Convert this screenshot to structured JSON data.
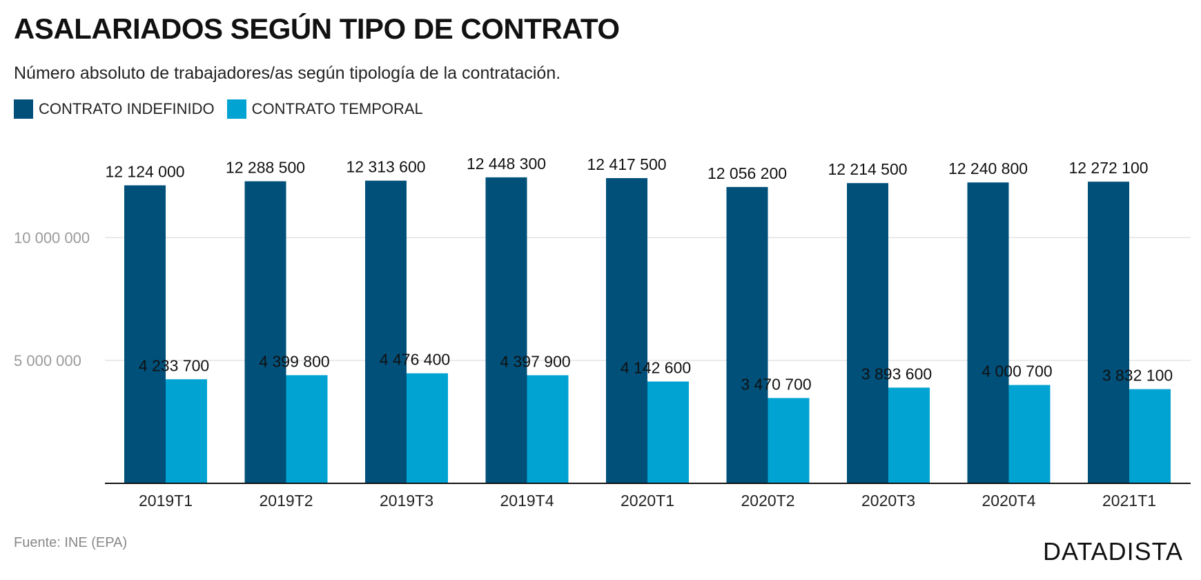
{
  "header": {
    "title": "ASALARIADOS SEGÚN TIPO DE CONTRATO",
    "subtitle": "Número absoluto de trabajadores/as según tipología de la contratación."
  },
  "legend": [
    {
      "label": "CONTRATO INDEFINIDO",
      "color": "#00507a"
    },
    {
      "label": "CONTRATO TEMPORAL",
      "color": "#00a3d1"
    }
  ],
  "footer": {
    "source": "Fuente: INE (EPA)",
    "brand": "DATADISTA"
  },
  "chart_data": {
    "type": "bar",
    "categories": [
      "2019T1",
      "2019T2",
      "2019T3",
      "2019T4",
      "2020T1",
      "2020T2",
      "2020T3",
      "2020T4",
      "2021T1"
    ],
    "series": [
      {
        "name": "CONTRATO INDEFINIDO",
        "color": "#00507a",
        "values": [
          12124000,
          12288500,
          12313600,
          12448300,
          12417500,
          12056200,
          12214500,
          12240800,
          12272100
        ],
        "labels": [
          "12 124 000",
          "12 288 500",
          "12 313 600",
          "12 448 300",
          "12 417 500",
          "12 056 200",
          "12 214 500",
          "12 240 800",
          "12 272 100"
        ]
      },
      {
        "name": "CONTRATO TEMPORAL",
        "color": "#00a3d1",
        "values": [
          4233700,
          4399800,
          4476400,
          4397900,
          4142600,
          3470700,
          3893600,
          4000700,
          3832100
        ],
        "labels": [
          "4 233 700",
          "4 399 800",
          "4 476 400",
          "4 397 900",
          "4 142 600",
          "3 470 700",
          "3 893 600",
          "4 000 700",
          "3 832 100"
        ]
      }
    ],
    "yticks": [
      5000000,
      10000000
    ],
    "ytick_labels": [
      "5 000 000",
      "10 000 000"
    ],
    "ylim": [
      0,
      12448300
    ],
    "grid": true,
    "legend_position": "top-left"
  }
}
